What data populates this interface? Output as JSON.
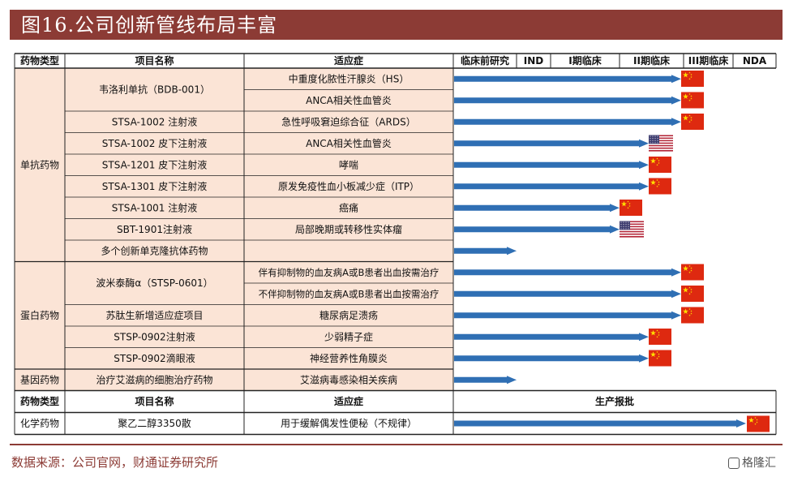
{
  "figure_title": "图16.公司创新管线布局丰富",
  "source_note": "数据来源：公司官网，财通证券研究所",
  "watermark": "格隆汇",
  "colors": {
    "title_bg": "#8c3b35",
    "row_fill": "#fbe4d6",
    "arrow": "#2f6fb4",
    "accent": "#8c3b35"
  },
  "header": {
    "col_type": "药物类型",
    "col_project": "项目名称",
    "col_indication": "适应症",
    "stages": [
      "临床前研究",
      "IND",
      "I期临床",
      "II期临床",
      "III期临床",
      "NDA"
    ]
  },
  "groups": [
    {
      "type": "单抗药物",
      "rows": [
        1,
        9
      ]
    },
    {
      "type": "蛋白药物",
      "rows": [
        10,
        14
      ]
    },
    {
      "type": "基因药物",
      "rows": [
        15,
        15
      ]
    }
  ],
  "rows": [
    {
      "project": "韦洛利单抗（BDB-001）",
      "indication": "中重度化脓性汗腺炎（HS）",
      "stage_end": 4,
      "flag": "cn",
      "project_span": 2
    },
    {
      "project": "",
      "indication": "ANCA相关性血管炎",
      "stage_end": 3,
      "flag": "cn",
      "project_span": 0
    },
    {
      "project": "STSA-1002 注射液",
      "indication": "急性呼吸窘迫综合征（ARDS）",
      "stage_end": 3,
      "flag": "cn",
      "project_span": 1
    },
    {
      "project": "STSA-1002 皮下注射液",
      "indication": "ANCA相关性血管炎",
      "stage_end": 2,
      "flag": "us",
      "project_span": 1
    },
    {
      "project": "STSA-1201 皮下注射液",
      "indication": "哮喘",
      "stage_end": 2,
      "flag": "cn",
      "project_span": 1
    },
    {
      "project": "STSA-1301 皮下注射液",
      "indication": "原发免疫性血小板减少症（ITP）",
      "stage_end": 2,
      "flag": "cn",
      "project_span": 1
    },
    {
      "project": "STSA-1001 注射液",
      "indication": "癌痛",
      "stage_end": 1,
      "flag": "cn",
      "project_span": 1
    },
    {
      "project": "SBT-1901注射液",
      "indication": "局部晚期或转移性实体瘤",
      "stage_end": 1,
      "flag": "us",
      "project_span": 1
    },
    {
      "project": "多个创新单克隆抗体药物",
      "indication": "",
      "stage_end": 0,
      "flag": "",
      "project_span": 1
    },
    {
      "project": "波米泰酶α（STSP-0601）",
      "indication": "伴有抑制物的血友病A或B患者出血按需治疗",
      "stage_end": 4,
      "flag": "cn",
      "project_span": 2
    },
    {
      "project": "",
      "indication": "不伴抑制物的血友病A或B患者出血按需治疗",
      "stage_end": 4,
      "flag": "cn",
      "project_span": 0
    },
    {
      "project": "苏肽生新增适应症项目",
      "indication": "糖尿病足溃疡",
      "stage_end": 4,
      "flag": "cn",
      "project_span": 1
    },
    {
      "project": "STSP-0902注射液",
      "indication": "少弱精子症",
      "stage_end": 2,
      "flag": "cn",
      "project_span": 1
    },
    {
      "project": "STSP-0902滴眼液",
      "indication": "神经营养性角膜炎",
      "stage_end": 2,
      "flag": "cn",
      "project_span": 1
    },
    {
      "project": "治疗艾滋病的细胞治疗药物",
      "indication": "艾滋病毒感染相关疾病",
      "stage_end": 0,
      "flag": "",
      "project_span": 1
    }
  ],
  "second_header": {
    "col_type": "药物类型",
    "col_project": "项目名称",
    "col_indication": "适应症",
    "col_stage": "生产报批"
  },
  "chem_row": {
    "type": "化学药物",
    "project": "聚乙二醇3350散",
    "indication": "用于缓解偶发性便秘（不规律）",
    "flag": "cn"
  }
}
